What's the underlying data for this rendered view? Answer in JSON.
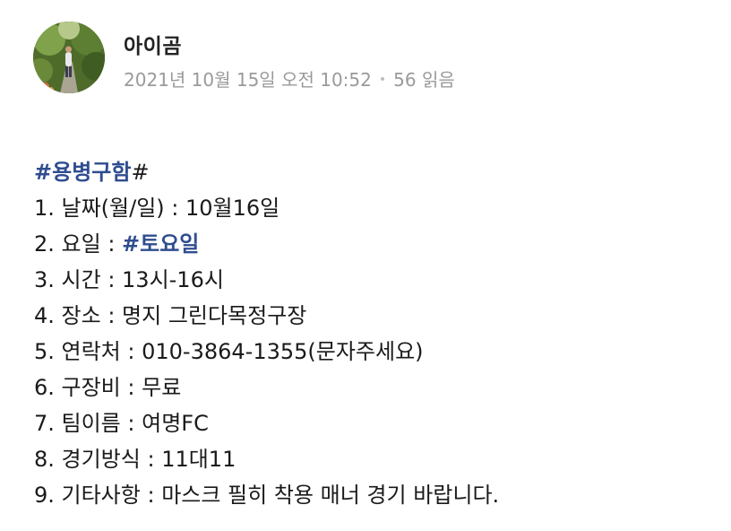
{
  "post": {
    "author": "아이곰",
    "date": "2021년 10월 15일 오전 10:52",
    "separator": "•",
    "views": "56 읽음"
  },
  "content": {
    "title_tag": "#용병구함",
    "title_suffix": "#",
    "lines": [
      "1. 날짜(월/일) : 10월16일",
      "2. 요일 : ",
      "3. 시간 : 13시-16시",
      "4. 장소 : 명지 그린다목정구장",
      "5. 연락처 : 010-3864-1355(문자주세요)",
      "6. 구장비 :  무료",
      "7. 팀이름 : 여명FC",
      "8. 경기방식 : 11대11",
      "9. 기타사항 : 마스크 필히 착용 매너 경기 바랍니다."
    ],
    "day_tag": "#토요일"
  },
  "colors": {
    "hashtag": "#2f4d8f",
    "meta": "#9a9a9a"
  },
  "icons": {
    "avatar": "profile-photo-forest-path"
  }
}
